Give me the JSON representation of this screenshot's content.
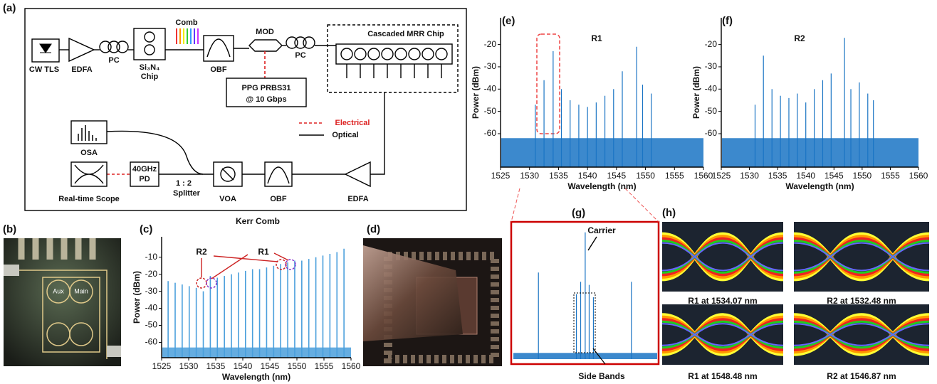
{
  "panel_labels": [
    "(a)",
    "(b)",
    "(c)",
    "(d)",
    "(e)",
    "(f)",
    "(g)",
    "(h)"
  ],
  "diagram": {
    "labels": [
      "CW TLS",
      "EDFA",
      "PC",
      "Si₃N₄",
      "Chip",
      "Comb",
      "OBF",
      "MOD",
      "PC",
      "Cascaded MRR Chip",
      "PPG PRBS31",
      "@ 10 Gbps",
      "Electrical",
      "Optical",
      "OSA",
      "Real-time Scope",
      "40GHz",
      "PD",
      "1 : 2",
      "Splitter",
      "VOA",
      "OBF",
      "EDFA"
    ]
  },
  "photo_b": {
    "labels": [
      "Aux",
      "Main"
    ]
  },
  "eye_captions": [
    "R1 at 1534.07 nm",
    "R2 at 1532.48 nm",
    "R1 at 1548.48 nm",
    "R2 at 1546.87 nm"
  ],
  "chart_data": [
    {
      "type": "spectrum",
      "title": "Kerr Comb",
      "xlabel": "Wavelength (nm)",
      "ylabel": "Power (dBm)",
      "color": "#4a9fdc",
      "x": [
        1526.2,
        1527.5,
        1528.8,
        1530.1,
        1531.4,
        1532.7,
        1534.0,
        1535.3,
        1536.6,
        1537.9,
        1539.2,
        1540.5,
        1541.8,
        1543.1,
        1544.4,
        1545.7,
        1547.0,
        1548.3,
        1549.6,
        1550.9,
        1552.2,
        1553.5,
        1554.8,
        1556.1,
        1557.4,
        1558.7
      ],
      "values": [
        -24,
        -25,
        -26,
        -27,
        -28,
        -30,
        -21,
        -22,
        -21,
        -20,
        -19,
        -18,
        -17,
        -17,
        -16,
        -15,
        -14,
        -13,
        -12,
        -12,
        -11,
        -10,
        -9,
        -8,
        -7,
        -5
      ],
      "noise_floor": -63,
      "xlim": [
        1525,
        1560
      ],
      "xticks": [
        1525,
        1530,
        1535,
        1540,
        1545,
        1550,
        1555,
        1560
      ],
      "ylim": [
        -69,
        2
      ],
      "yticks": [
        -60,
        -50,
        -40,
        -30,
        -20,
        -10
      ],
      "annotations": [
        "R2",
        "R1"
      ]
    },
    {
      "type": "spectrum",
      "title": "R1",
      "xlabel": "Wavelength (nm)",
      "ylabel": "Power (dBm)",
      "color": "#1a74c4",
      "x": [
        1531,
        1532.5,
        1534.07,
        1535.5,
        1537,
        1538.5,
        1540,
        1541.5,
        1543,
        1544.5,
        1546,
        1548.48,
        1549.5,
        1551
      ],
      "values": [
        -47,
        -36,
        -23,
        -40,
        -45,
        -47,
        -48,
        -46,
        -43,
        -40,
        -32,
        -21,
        -38,
        -42
      ],
      "noise_floor": -62,
      "xlim": [
        1525,
        1560
      ],
      "xticks": [
        1525,
        1530,
        1535,
        1540,
        1545,
        1550,
        1555,
        1560
      ],
      "ylim": [
        -75,
        -8
      ],
      "yticks": [
        -60,
        -50,
        -40,
        -30,
        -20
      ]
    },
    {
      "type": "spectrum",
      "title": "R2",
      "xlabel": "Wavelength (nm)",
      "ylabel": "Power (dBm)",
      "color": "#1a74c4",
      "x": [
        1531,
        1532.48,
        1534,
        1535.5,
        1537,
        1538.5,
        1540,
        1541.5,
        1543,
        1544.5,
        1546.87,
        1548,
        1549.5,
        1551,
        1552
      ],
      "values": [
        -47,
        -25,
        -40,
        -43,
        -44,
        -42,
        -46,
        -40,
        -36,
        -33,
        -17,
        -40,
        -37,
        -42,
        -45
      ],
      "noise_floor": -62,
      "xlim": [
        1525,
        1560
      ],
      "xticks": [
        1525,
        1530,
        1535,
        1540,
        1545,
        1550,
        1555,
        1560
      ],
      "ylim": [
        -75,
        -8
      ],
      "yticks": [
        -60,
        -50,
        -40,
        -30,
        -20
      ]
    },
    {
      "type": "spectrum",
      "color": "#1a74c4",
      "x": [
        1532.41,
        1533.75,
        1533.9,
        1534.06,
        1534.2,
        1534.35,
        1535.69
      ],
      "values": [
        -36,
        -43,
        -39,
        -23,
        -40,
        -44,
        -39
      ],
      "noise_floor": -62,
      "xlim": [
        1531.5,
        1536.6
      ],
      "ylim": [
        -64,
        -21
      ],
      "annotations": [
        "Carrier",
        "Side Bands"
      ]
    }
  ]
}
